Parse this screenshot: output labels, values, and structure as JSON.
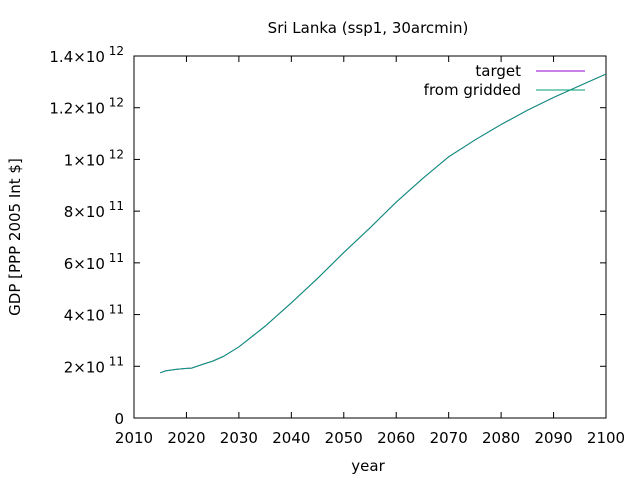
{
  "chart_data": {
    "type": "line",
    "title": "Sri Lanka (ssp1, 30arcmin)",
    "xlabel": "year",
    "ylabel": "GDP [PPP 2005 Int $]",
    "xlim": [
      2010,
      2100
    ],
    "ylim": [
      0,
      1400000000000
    ],
    "grid": false,
    "legend_position": "top-right",
    "x_ticks": [
      "2010",
      "2020",
      "2030",
      "2040",
      "2050",
      "2060",
      "2070",
      "2080",
      "2090",
      "2100"
    ],
    "y_ticks": [
      {
        "value": 0,
        "mantissa": "0",
        "exponent": ""
      },
      {
        "value": 200000000000,
        "mantissa": "2×10",
        "exponent": "11"
      },
      {
        "value": 400000000000,
        "mantissa": "4×10",
        "exponent": "11"
      },
      {
        "value": 600000000000,
        "mantissa": "6×10",
        "exponent": "11"
      },
      {
        "value": 800000000000,
        "mantissa": "8×10",
        "exponent": "11"
      },
      {
        "value": 1000000000000,
        "mantissa": "1×10",
        "exponent": "12"
      },
      {
        "value": 1200000000000,
        "mantissa": "1.2×10",
        "exponent": "12"
      },
      {
        "value": 1400000000000,
        "mantissa": "1.4×10",
        "exponent": "12"
      }
    ],
    "x": [
      2015,
      2016,
      2018,
      2020,
      2021,
      2023,
      2025,
      2027,
      2030,
      2035,
      2040,
      2045,
      2050,
      2055,
      2060,
      2065,
      2070,
      2075,
      2080,
      2085,
      2090,
      2095,
      2100
    ],
    "series": [
      {
        "name": "target",
        "color": "#9400d3",
        "values": [
          175000000000,
          182000000000,
          188000000000,
          192000000000,
          193000000000,
          207000000000,
          220000000000,
          238000000000,
          275000000000,
          355000000000,
          445000000000,
          540000000000,
          640000000000,
          735000000000,
          835000000000,
          925000000000,
          1010000000000,
          1075000000000,
          1135000000000,
          1190000000000,
          1240000000000,
          1285000000000,
          1330000000000
        ]
      },
      {
        "name": "from gridded",
        "color": "#009e73",
        "values": [
          175000000000,
          182000000000,
          188000000000,
          192000000000,
          193000000000,
          207000000000,
          220000000000,
          238000000000,
          275000000000,
          355000000000,
          445000000000,
          540000000000,
          640000000000,
          735000000000,
          835000000000,
          925000000000,
          1010000000000,
          1075000000000,
          1135000000000,
          1190000000000,
          1240000000000,
          1285000000000,
          1330000000000
        ]
      }
    ]
  }
}
